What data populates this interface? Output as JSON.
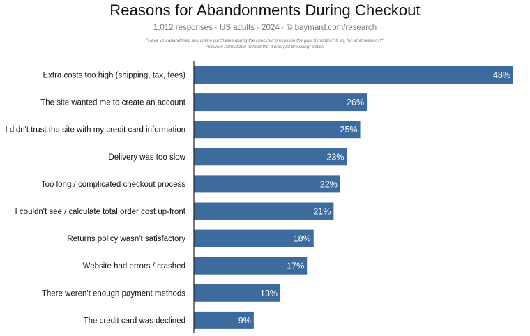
{
  "chart_data": {
    "type": "bar",
    "orientation": "horizontal",
    "title": "Reasons for Abandonments During Checkout",
    "subtitle": "1,012 responses  ·  US adults  ·  2024  ·  ©  baymard.com/research",
    "note_line1": "\"Have you abandoned any online purchases during the checkout process in the past 3 months? If so, for what reasons?\"",
    "note_line2": "Answers normalized without the \"I was just browsing\" option",
    "categories": [
      "Extra costs too high (shipping, tax, fees)",
      "The site wanted me to create an account",
      "I didn't trust the site with my credit card information",
      "Delivery was too slow",
      "Too long / complicated checkout process",
      "I couldn't see / calculate total order cost up-front",
      "Returns policy wasn't satisfactory",
      "Website had errors / crashed",
      "There weren't enough payment methods",
      "The credit card was declined"
    ],
    "values": [
      48,
      26,
      25,
      23,
      22,
      21,
      18,
      17,
      13,
      9
    ],
    "value_labels": [
      "48%",
      "26%",
      "25%",
      "23%",
      "22%",
      "21%",
      "18%",
      "17%",
      "13%",
      "9%"
    ],
    "unit": "%",
    "xlim": [
      0,
      48
    ],
    "bar_color": "#3d6b9e",
    "grid": false
  }
}
